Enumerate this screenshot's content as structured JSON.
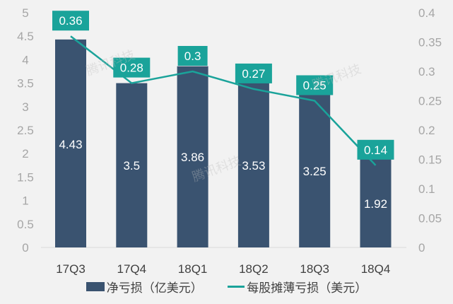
{
  "chart_data": {
    "type": "bar+line",
    "categories": [
      "17Q3",
      "17Q4",
      "18Q1",
      "18Q2",
      "18Q3",
      "18Q4"
    ],
    "series": [
      {
        "name": "净亏损（亿美元）",
        "type": "bar",
        "axis": "left",
        "color": "#3a5370",
        "values": [
          4.43,
          3.5,
          3.86,
          3.53,
          3.25,
          1.92
        ]
      },
      {
        "name": "每股摊薄亏损（美元）",
        "type": "line",
        "axis": "right",
        "color": "#1aa39a",
        "values": [
          0.36,
          0.28,
          0.3,
          0.27,
          0.25,
          0.14
        ]
      }
    ],
    "left_axis": {
      "ylim": [
        0,
        5
      ],
      "ticks": [
        "0",
        "0.5",
        "1",
        "1.5",
        "2",
        "2.5",
        "3",
        "3.5",
        "4",
        "4.5",
        "5"
      ]
    },
    "right_axis": {
      "ylim": [
        0,
        0.4
      ],
      "ticks": [
        "0",
        "0.05",
        "0.1",
        "0.15",
        "0.2",
        "0.25",
        "0.3",
        "0.35",
        "0.4"
      ]
    },
    "grid": false,
    "legend_position": "bottom"
  },
  "legend": {
    "bar_label": "净亏损（亿美元）",
    "line_label": "每股摊薄亏损（美元）"
  },
  "watermark": "腾讯科技"
}
